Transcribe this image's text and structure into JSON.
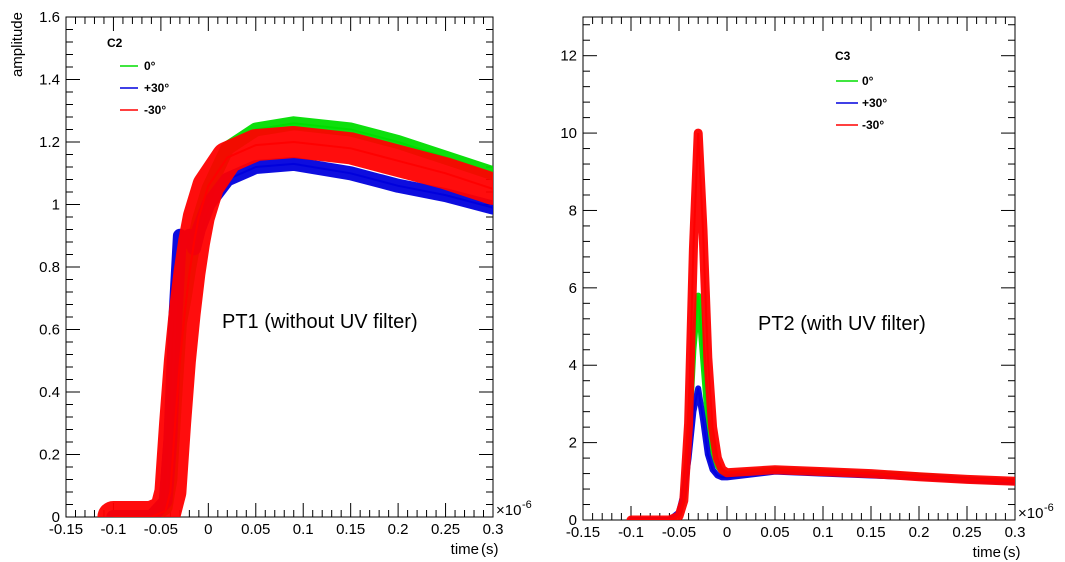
{
  "chart_data": [
    {
      "type": "line",
      "legend_title": "C2",
      "annotation": "PT1 (without UV filter)",
      "ylabel": "amplitude",
      "xlabel": "time",
      "xlabel_unit": "(s)",
      "x_exponent": "×10",
      "x_exponent_power": "-6",
      "xlim": [
        -0.15,
        0.3
      ],
      "ylim": [
        0,
        1.6
      ],
      "x_ticks": [
        "-0.15",
        "-0.1",
        "-0.05",
        "0",
        "0.05",
        "0.1",
        "0.15",
        "0.2",
        "0.25",
        "0.3"
      ],
      "y_ticks": [
        "0",
        "0.2",
        "0.4",
        "0.6",
        "0.8",
        "1",
        "1.2",
        "1.4",
        "1.6"
      ],
      "legend_position": "top-left",
      "grid": false,
      "series": [
        {
          "name": "0°",
          "color": "#00dd00",
          "x": [
            -0.1,
            -0.06,
            -0.045,
            -0.04,
            -0.035,
            -0.03,
            -0.025,
            -0.02,
            -0.015,
            -0.01,
            0,
            0.02,
            0.05,
            0.09,
            0.15,
            0.2,
            0.25,
            0.3
          ],
          "y": [
            0,
            0,
            0.03,
            0.12,
            0.38,
            0.62,
            0.7,
            0.8,
            0.88,
            0.95,
            1.05,
            1.18,
            1.24,
            1.26,
            1.24,
            1.2,
            1.15,
            1.1
          ]
        },
        {
          "name": "+30°",
          "color": "#0000dd",
          "x": [
            -0.1,
            -0.06,
            -0.045,
            -0.04,
            -0.035,
            -0.03,
            -0.025,
            -0.02,
            -0.015,
            -0.01,
            0,
            0.02,
            0.05,
            0.09,
            0.15,
            0.2,
            0.25,
            0.3
          ],
          "y": [
            0,
            0,
            0.05,
            0.25,
            0.62,
            0.9,
            0.88,
            0.9,
            0.86,
            0.92,
            1.0,
            1.08,
            1.12,
            1.13,
            1.1,
            1.06,
            1.03,
            0.99
          ]
        },
        {
          "name": "-30°",
          "color": "#ff0000",
          "x": [
            -0.1,
            -0.06,
            -0.045,
            -0.04,
            -0.035,
            -0.03,
            -0.025,
            -0.02,
            -0.015,
            -0.01,
            0,
            0.02,
            0.05,
            0.09,
            0.15,
            0.2,
            0.25,
            0.3
          ],
          "y": [
            0,
            0,
            0.02,
            0.08,
            0.3,
            0.5,
            0.65,
            0.78,
            0.88,
            0.96,
            1.06,
            1.15,
            1.19,
            1.2,
            1.18,
            1.14,
            1.1,
            1.05
          ]
        }
      ]
    },
    {
      "type": "line",
      "legend_title": "C3",
      "annotation": "PT2 (with UV filter)",
      "ylabel": "",
      "xlabel": "time",
      "xlabel_unit": "(s)",
      "x_exponent": "×10",
      "x_exponent_power": "-6",
      "xlim": [
        -0.15,
        0.3
      ],
      "ylim": [
        0,
        13
      ],
      "x_ticks": [
        "-0.15",
        "-0.1",
        "-0.05",
        "0",
        "0.05",
        "0.1",
        "0.15",
        "0.2",
        "0.25",
        "0.3"
      ],
      "y_ticks": [
        "0",
        "2",
        "4",
        "6",
        "8",
        "10",
        "12"
      ],
      "legend_position": "top-right",
      "grid": false,
      "series": [
        {
          "name": "0°",
          "color": "#00dd00",
          "x": [
            -0.1,
            -0.06,
            -0.05,
            -0.045,
            -0.04,
            -0.035,
            -0.03,
            -0.025,
            -0.02,
            -0.015,
            -0.01,
            -0.005,
            0,
            0.05,
            0.1,
            0.15,
            0.2,
            0.25,
            0.3
          ],
          "y": [
            0,
            0,
            0.15,
            0.6,
            2.0,
            4.4,
            5.8,
            4.2,
            2.6,
            1.8,
            1.4,
            1.25,
            1.2,
            1.3,
            1.25,
            1.2,
            1.15,
            1.05,
            1.0
          ]
        },
        {
          "name": "+30°",
          "color": "#0000dd",
          "x": [
            -0.1,
            -0.06,
            -0.05,
            -0.045,
            -0.04,
            -0.035,
            -0.03,
            -0.025,
            -0.02,
            -0.015,
            -0.01,
            -0.005,
            0,
            0.05,
            0.1,
            0.15,
            0.2,
            0.25,
            0.3
          ],
          "y": [
            0,
            0,
            0.2,
            0.7,
            1.6,
            2.8,
            3.4,
            2.6,
            1.7,
            1.3,
            1.15,
            1.1,
            1.1,
            1.25,
            1.2,
            1.15,
            1.1,
            1.03,
            0.98
          ]
        },
        {
          "name": "-30°",
          "color": "#ff0000",
          "x": [
            -0.1,
            -0.06,
            -0.05,
            -0.045,
            -0.04,
            -0.035,
            -0.03,
            -0.025,
            -0.02,
            -0.015,
            -0.01,
            -0.005,
            0,
            0.05,
            0.1,
            0.15,
            0.2,
            0.25,
            0.3
          ],
          "y": [
            0,
            0,
            0.1,
            0.5,
            2.5,
            7.0,
            10.0,
            7.5,
            4.2,
            2.4,
            1.6,
            1.3,
            1.22,
            1.3,
            1.25,
            1.2,
            1.12,
            1.05,
            1.0
          ]
        }
      ]
    }
  ]
}
